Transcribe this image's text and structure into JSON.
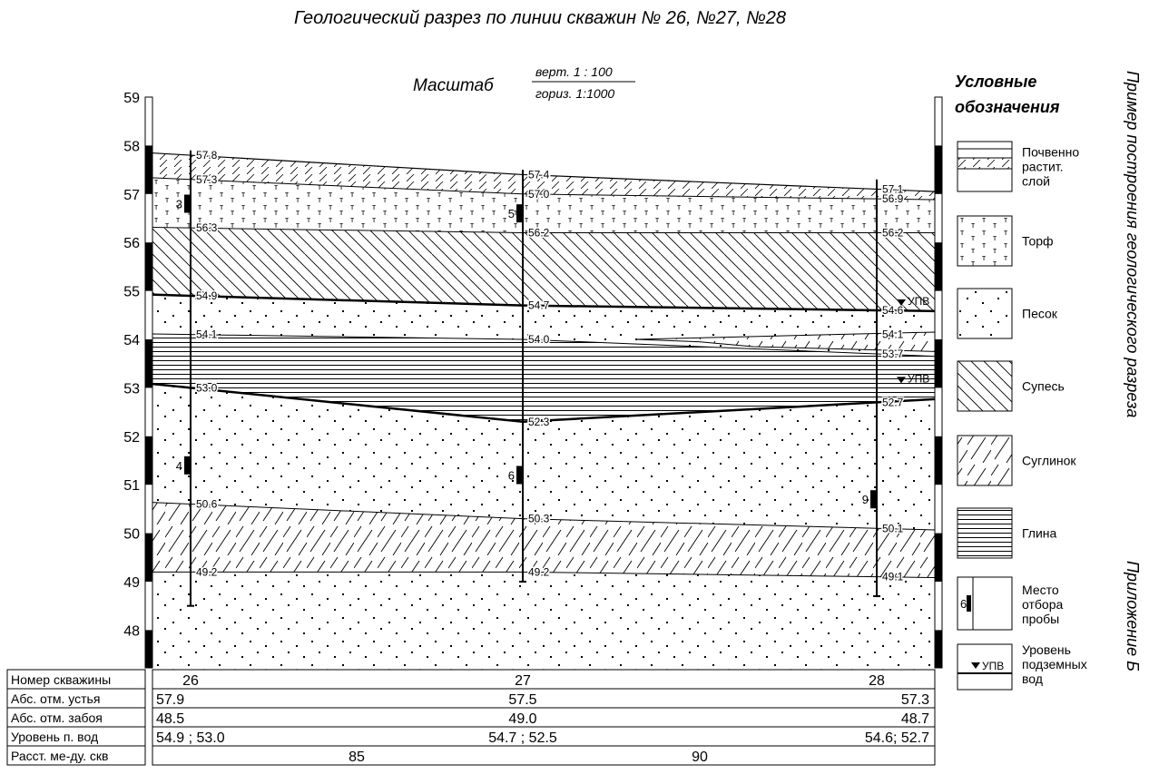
{
  "title": "Геологический разрез по линии скважин № 26, №27, №28",
  "scale": {
    "label": "Масштаб",
    "vertical": "верт. 1 : 100",
    "horizontal": "гориз. 1:1000"
  },
  "side_caption": "Пример построения геологического разреза",
  "appendix": "Приложение Б",
  "axis": {
    "ticks": [
      "59",
      "58",
      "57",
      "56",
      "55",
      "54",
      "53",
      "52",
      "51",
      "50",
      "49",
      "48"
    ],
    "ylim": [
      47.2,
      59.4
    ]
  },
  "legend": {
    "title_line1": "Условные",
    "title_line2": "обозначения",
    "items": [
      {
        "id": "soil",
        "lines": [
          "Почвенно",
          "растит.",
          "слой"
        ]
      },
      {
        "id": "peat",
        "lines": [
          "Торф"
        ]
      },
      {
        "id": "sand",
        "lines": [
          "Песок"
        ]
      },
      {
        "id": "sandy-loam",
        "lines": [
          "Супесь"
        ]
      },
      {
        "id": "loam",
        "lines": [
          "Суглинок"
        ]
      },
      {
        "id": "clay",
        "lines": [
          "Глина"
        ]
      },
      {
        "id": "sample",
        "lines": [
          "Место",
          "отбора",
          "пробы"
        ],
        "sample_num": "6"
      },
      {
        "id": "water",
        "lines": [
          "Уровень",
          "подземных",
          "вод"
        ],
        "marker": "УПВ"
      }
    ]
  },
  "wells": [
    {
      "number": "26",
      "mouth": 57.9,
      "bottom": 48.5,
      "sample_nums": [
        "3",
        "4"
      ],
      "samples_at": [
        56.8,
        51.4
      ]
    },
    {
      "number": "27",
      "mouth": 57.5,
      "bottom": 49.0,
      "sample_nums": [
        "5",
        "6"
      ],
      "samples_at": [
        56.6,
        51.2
      ]
    },
    {
      "number": "28",
      "mouth": 57.3,
      "bottom": 48.7,
      "sample_nums": [
        "9"
      ],
      "samples_at": [
        50.7
      ]
    }
  ],
  "contacts": {
    "soil_top": [
      57.8,
      57.4,
      57.1
    ],
    "peat_top": [
      57.3,
      57.0,
      56.9
    ],
    "sandy_loam_top": [
      56.3,
      56.2,
      56.2
    ],
    "sand_top": [
      54.9,
      54.7,
      54.6
    ],
    "clay_top": [
      54.1,
      54.0,
      53.7
    ],
    "loam_lens_top": [
      54.1
    ],
    "sand2_top": [
      53.0,
      52.3,
      52.7
    ],
    "loam_top": [
      50.6,
      50.3,
      50.1
    ],
    "sand3_top": [
      49.2,
      49.2,
      49.1
    ]
  },
  "labels": [
    [
      "57.8",
      "57.3",
      "56.3",
      "54.9",
      "54.1",
      "53.0",
      "50.6",
      "49.2"
    ],
    [
      "57.4",
      "57.0",
      "56.2",
      "54.7",
      "54.0",
      "52.3",
      "50.3",
      "49.2"
    ],
    [
      "57.1",
      "56.9",
      "56.2",
      "54.6",
      "54.1",
      "53.7",
      "52.7",
      "50.1",
      "49.1"
    ]
  ],
  "water_marker": "УПВ",
  "water_levels": [
    54.6,
    53.0
  ],
  "table": {
    "rows": [
      {
        "label": "Номер скважины",
        "values": [
          "26",
          "27",
          "28"
        ]
      },
      {
        "label": "Абс. отм. устья",
        "values": [
          "57.9",
          "57.5",
          "57.3"
        ]
      },
      {
        "label": "Абс. отм. забоя",
        "values": [
          "48.5",
          "49.0",
          "48.7"
        ]
      },
      {
        "label": "Уровень п. вод",
        "values": [
          "54.9 ; 53.0",
          "54.7 ; 52.5",
          "54.6; 52.7"
        ]
      },
      {
        "label": "Расст. ме-ду. скв",
        "values": [
          "85",
          "90"
        ]
      }
    ]
  }
}
